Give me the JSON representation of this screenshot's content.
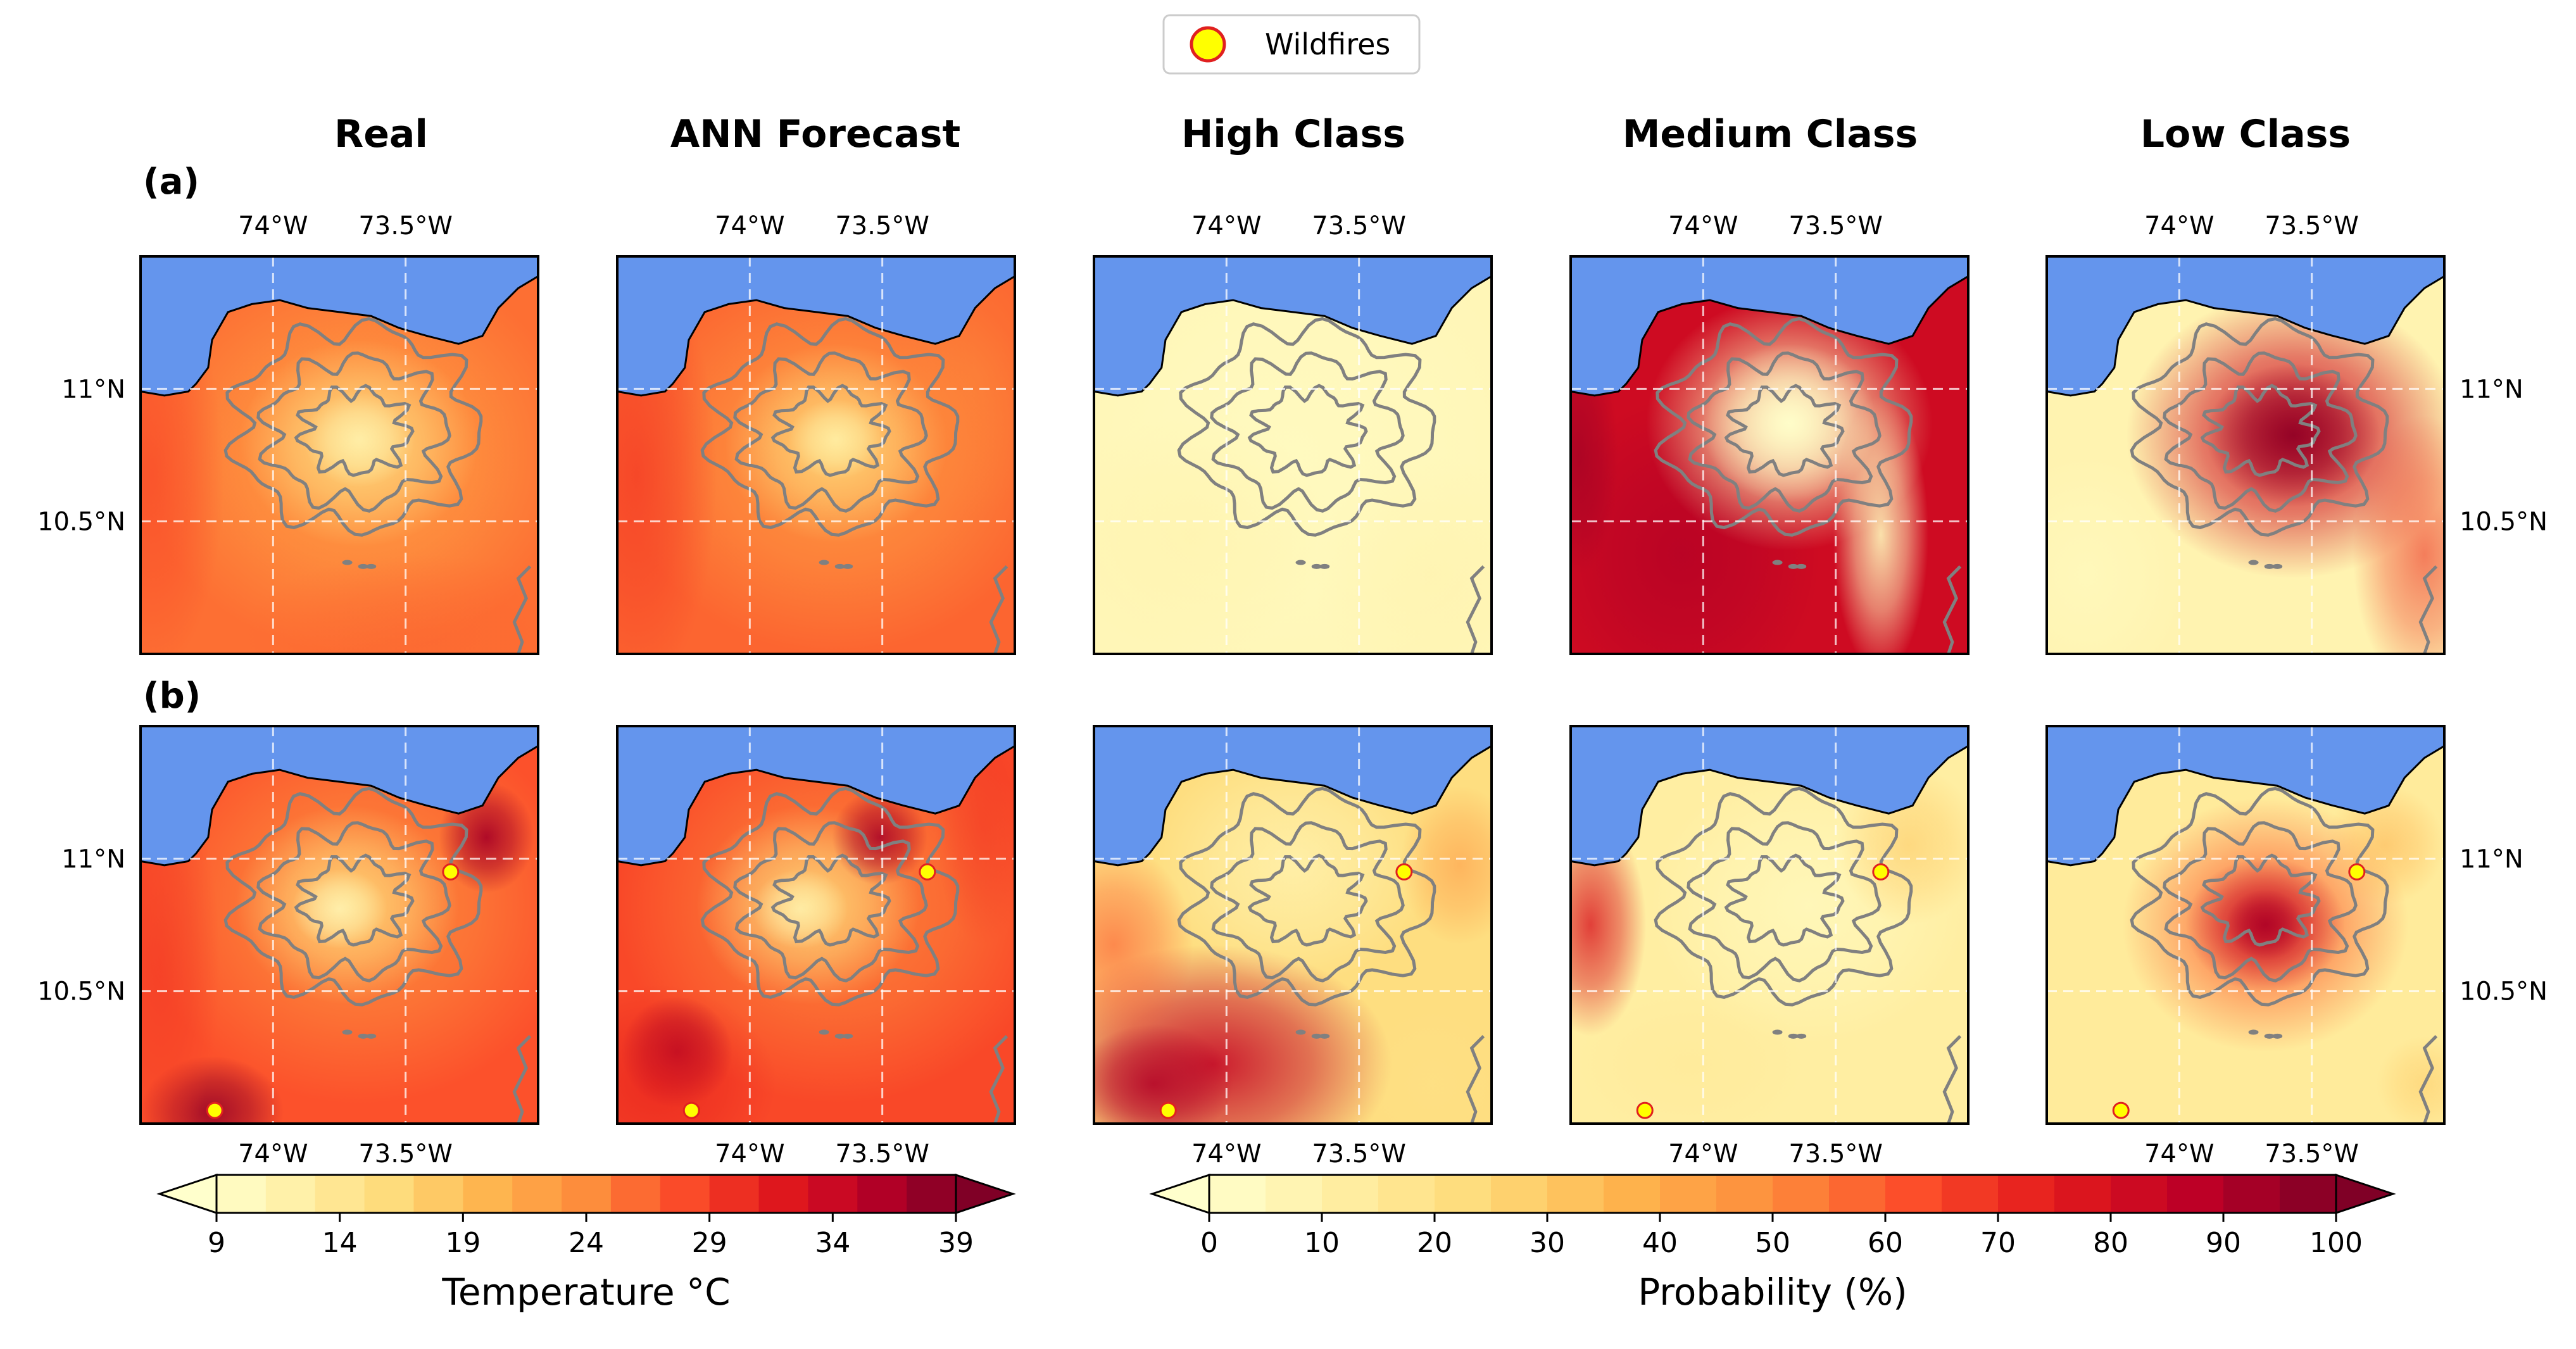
{
  "chart_data": {
    "type": "heatmap",
    "legend": {
      "label": "Wildfires",
      "marker_fill": "#ffff00",
      "marker_edge": "#e02020",
      "placement": "top-center"
    },
    "columns": [
      "Real",
      "ANN Forecast",
      "High Class",
      "Medium Class",
      "Low Class"
    ],
    "rows": [
      "(a)",
      "(b)"
    ],
    "lon_ticks": [
      "74°W",
      "73.5°W"
    ],
    "lat_ticks": [
      "11°N",
      "10.5°N"
    ],
    "lon_tick_values": [
      -74.0,
      -73.5
    ],
    "lat_tick_values": [
      11.0,
      10.5
    ],
    "lon_range": [
      -74.5,
      -73.0
    ],
    "lat_range": [
      10.0,
      11.5
    ],
    "grid": true,
    "sea_color": "#6495ed",
    "colorbars": [
      {
        "label": "Temperature °C",
        "ticks": [
          "9",
          "14",
          "19",
          "24",
          "29",
          "34",
          "39"
        ],
        "range": [
          9,
          39
        ],
        "extend": "both",
        "applies_to": [
          "Real",
          "ANN Forecast"
        ]
      },
      {
        "label": "Probability (%)",
        "ticks": [
          "0",
          "10",
          "20",
          "30",
          "40",
          "50",
          "60",
          "70",
          "80",
          "90",
          "100"
        ],
        "range": [
          0,
          100
        ],
        "extend": "both",
        "applies_to": [
          "High Class",
          "Medium Class",
          "Low Class"
        ]
      }
    ],
    "wildfires": {
      "(a)": [],
      "(b)": [
        {
          "lon": -73.33,
          "lat": 10.95
        },
        {
          "lon": -74.22,
          "lat": 10.05
        }
      ]
    }
  }
}
